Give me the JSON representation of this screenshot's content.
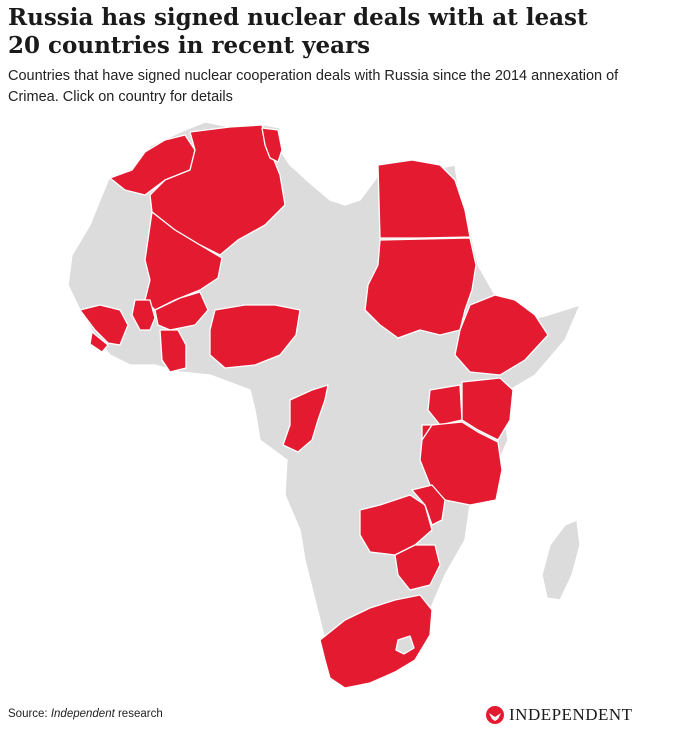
{
  "header": {
    "title": "Russia has signed nuclear deals with at least 20 countries in recent years",
    "subtitle": "Countries that have signed nuclear cooperation deals with Russia since the 2014 annexation of Crimea. Click on country for details"
  },
  "footer": {
    "source_prefix": "Source: ",
    "source_italic": "Independent",
    "source_suffix": " research",
    "logo_text": "INDEPENDENT"
  },
  "colors": {
    "deal_country": "#e41b30",
    "other_country": "#dcdcdc",
    "background": "#ffffff"
  }
}
